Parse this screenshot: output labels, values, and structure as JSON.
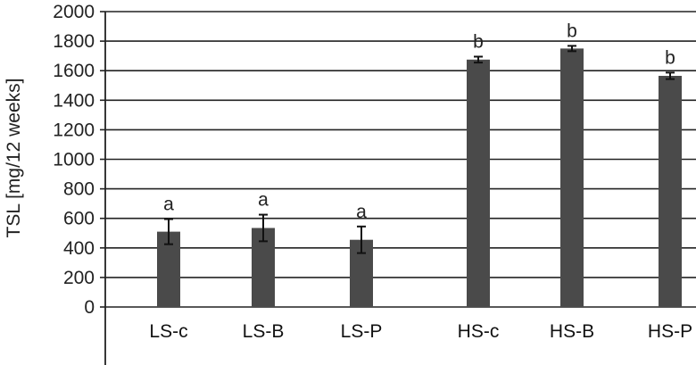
{
  "chart_data": {
    "type": "bar",
    "title": "",
    "xlabel": "",
    "ylabel": "TSL [mg/12 weeks]",
    "ylim": [
      0,
      2000
    ],
    "yticks": [
      0,
      200,
      400,
      600,
      800,
      1000,
      1200,
      1400,
      1600,
      1800,
      2000
    ],
    "grid": true,
    "legend": "none",
    "categories": [
      "LS-c",
      "LS-B",
      "LS-P",
      "HS-c",
      "HS-B",
      "HS-P"
    ],
    "series": [
      {
        "values": [
          510,
          535,
          455,
          1675,
          1750,
          1565
        ],
        "errors": [
          85,
          90,
          90,
          20,
          18,
          22
        ],
        "significance": [
          "a",
          "a",
          "a",
          "b",
          "b",
          "b"
        ]
      }
    ],
    "colors": {
      "bar": "#4a4a4a",
      "grid": "#222222",
      "axis": "#222222",
      "errorbar": "#111111"
    }
  }
}
